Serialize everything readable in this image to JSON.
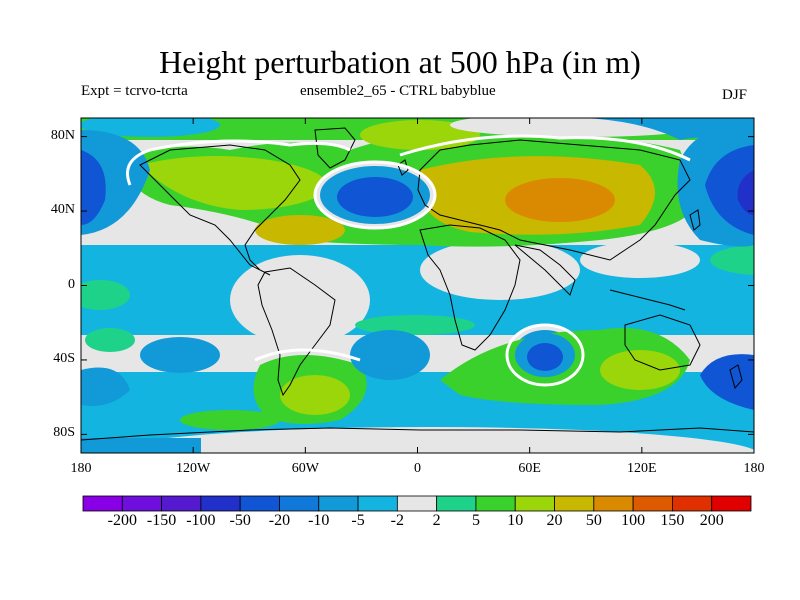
{
  "title": "Height perturbation at 500 hPa (in m)",
  "left_label": "Expt = tcrvo-tcrta",
  "center_label": "ensemble2_65 - CTRL babyblue",
  "right_label": "DJF",
  "y_ticks": [
    "80N",
    "40N",
    "0",
    "40S",
    "80S"
  ],
  "x_ticks": [
    "180",
    "120W",
    "60W",
    "0",
    "60E",
    "120E",
    "180"
  ],
  "colorbar": {
    "labels": [
      "-200",
      "-150",
      "-100",
      "-50",
      "-20",
      "-10",
      "-5",
      "-2",
      "2",
      "5",
      "10",
      "20",
      "50",
      "100",
      "150",
      "200"
    ],
    "colors": [
      "#8a00e6",
      "#6f0fdd",
      "#5519d0",
      "#2030c8",
      "#1055d4",
      "#0f78d8",
      "#129ad8",
      "#14b4e0",
      "#e6e6e6",
      "#1fd28a",
      "#3ad12c",
      "#9ad60a",
      "#c8b800",
      "#d98a00",
      "#dd5a00",
      "#e03000",
      "#e00000"
    ]
  },
  "chart_data": {
    "type": "heatmap",
    "title": "Height perturbation at 500 hPa (in m)",
    "xlim": [
      -180,
      180
    ],
    "ylim": [
      -90,
      90
    ],
    "x_tick_values": [
      -180,
      -120,
      -60,
      0,
      60,
      120,
      180
    ],
    "y_tick_values": [
      80,
      40,
      0,
      -40,
      -80
    ],
    "contour_levels": [
      -200,
      -150,
      -100,
      -50,
      -20,
      -10,
      -5,
      -2,
      2,
      5,
      10,
      20,
      50,
      100,
      150,
      200
    ]
  }
}
